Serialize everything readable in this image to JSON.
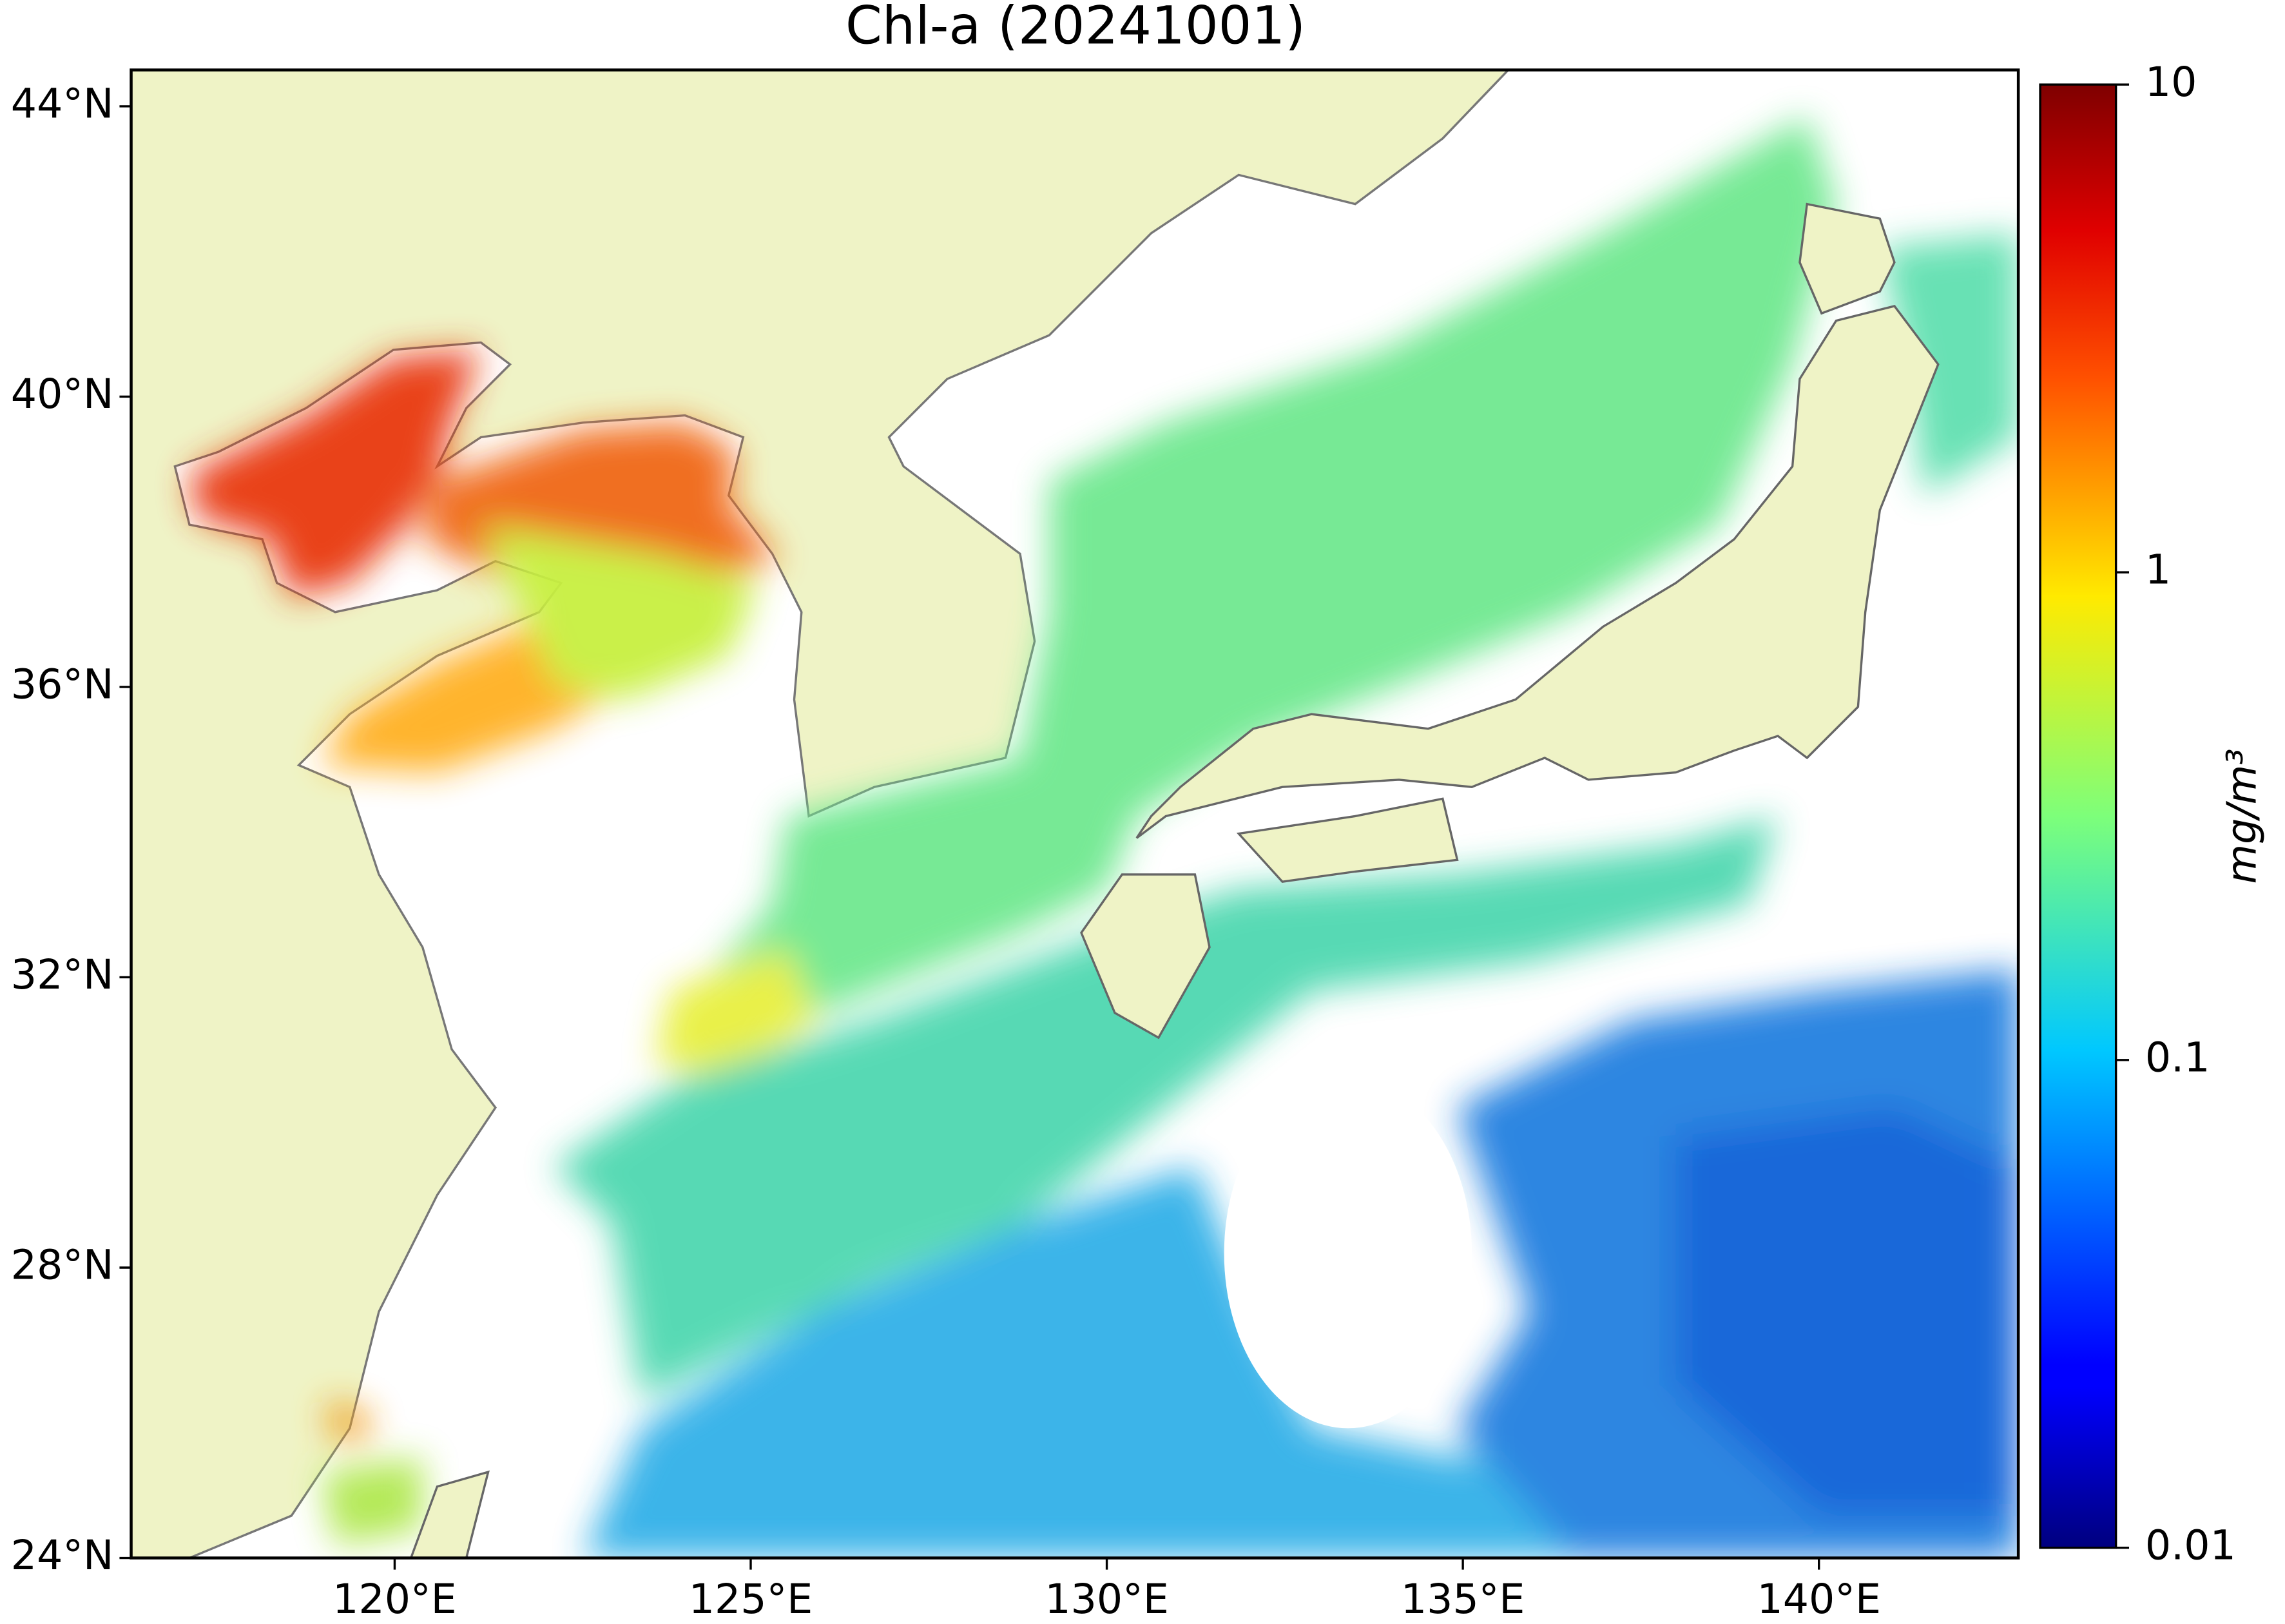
{
  "map": {
    "title": "Chl-a (20241001)",
    "xlim": [
      116.3,
      142.8
    ],
    "ylim": [
      24,
      44.5
    ],
    "xticks": [
      {
        "value": 120,
        "label": "120°E"
      },
      {
        "value": 125,
        "label": "125°E"
      },
      {
        "value": 130,
        "label": "130°E"
      },
      {
        "value": 135,
        "label": "135°E"
      },
      {
        "value": 140,
        "label": "140°E"
      }
    ],
    "yticks": [
      {
        "value": 24,
        "label": "24°N"
      },
      {
        "value": 28,
        "label": "28°N"
      },
      {
        "value": 32,
        "label": "32°N"
      },
      {
        "value": 36,
        "label": "36°N"
      },
      {
        "value": 40,
        "label": "40°N"
      },
      {
        "value": 44,
        "label": "44°N"
      }
    ],
    "colorbar": {
      "label": "mg/m³",
      "scale": "log",
      "lim": [
        0.01,
        10
      ],
      "ticks": [
        0.01,
        0.1,
        1,
        10
      ],
      "colormap": "jet"
    }
  }
}
